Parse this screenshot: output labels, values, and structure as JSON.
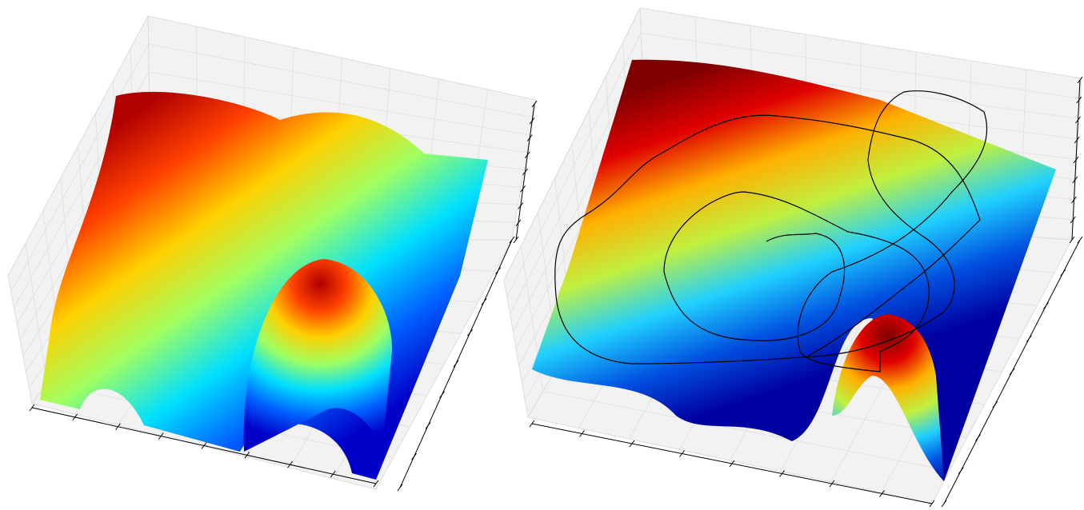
{
  "chart_data": [
    {
      "type": "surface",
      "grid": true,
      "colors": [
        "#b00000",
        "#ff4000",
        "#ffd000",
        "#a0ff60",
        "#00e0ff",
        "#0060ff",
        "#0000c8"
      ]
    },
    {
      "type": "surface",
      "grid": true,
      "colors": [
        "#800000",
        "#e00000",
        "#ffb000",
        "#c0f040",
        "#20d0ff",
        "#0050e0",
        "#0000a0"
      ]
    }
  ]
}
